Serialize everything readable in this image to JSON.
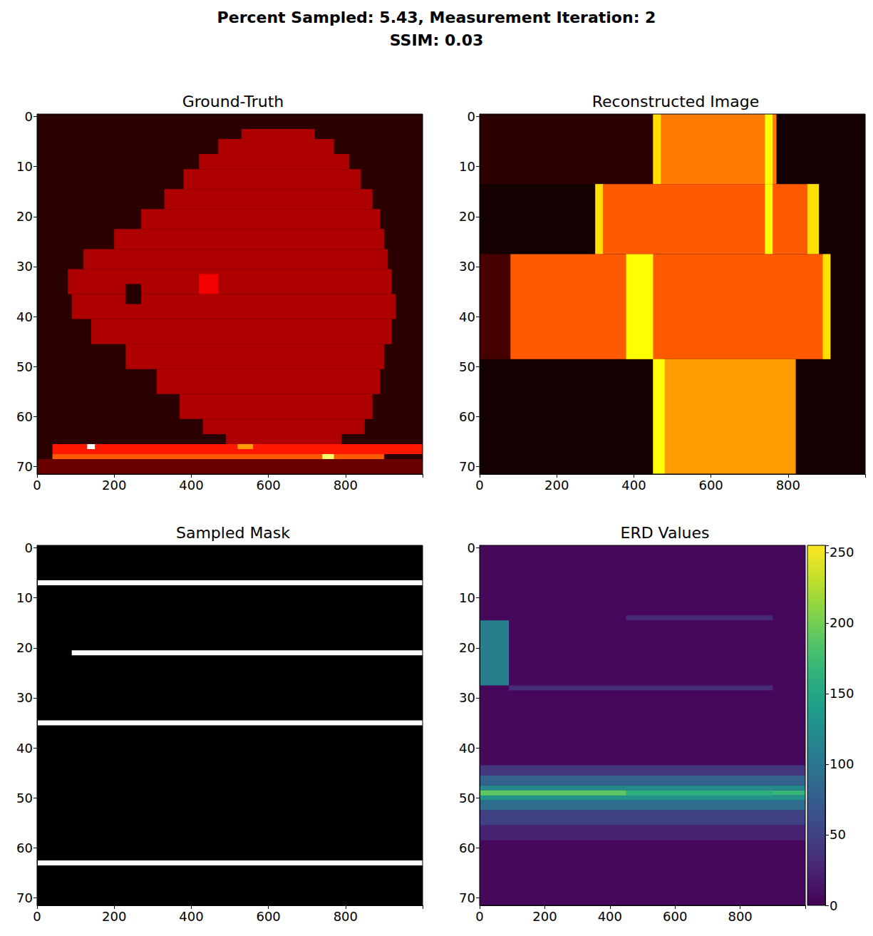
{
  "title": "Percent Sampled: 5.43, Measurement Iteration: 2",
  "subtitle": "SSIM: 0.03",
  "chart_data": [
    {
      "type": "heatmap",
      "title": "Ground-Truth",
      "xlim": [
        0,
        1000
      ],
      "xticks": [
        0,
        200,
        400,
        600,
        800
      ],
      "ylim": [
        71.5,
        -0.5
      ],
      "yticks": [
        0,
        10,
        20,
        30,
        40,
        50,
        60,
        70
      ],
      "color_range": [
        0,
        1
      ],
      "cells": [
        [
          0,
          1000,
          -0.5,
          71.5,
          0.06
        ],
        [
          530,
          720,
          2.5,
          4.5,
          0.25
        ],
        [
          470,
          770,
          4.5,
          7.5,
          0.25
        ],
        [
          420,
          810,
          7.5,
          10.5,
          0.25
        ],
        [
          380,
          840,
          10.5,
          14.5,
          0.25
        ],
        [
          330,
          870,
          14.5,
          18.5,
          0.25
        ],
        [
          270,
          890,
          18.5,
          22.5,
          0.25
        ],
        [
          200,
          900,
          22.5,
          26.5,
          0.25
        ],
        [
          120,
          910,
          26.5,
          30.5,
          0.25
        ],
        [
          80,
          920,
          30.5,
          35.5,
          0.25
        ],
        [
          90,
          930,
          35.5,
          40.5,
          0.25
        ],
        [
          140,
          920,
          40.5,
          45.5,
          0.25
        ],
        [
          230,
          900,
          45.5,
          50.5,
          0.25
        ],
        [
          310,
          890,
          50.5,
          55.5,
          0.25
        ],
        [
          370,
          870,
          55.5,
          60.5,
          0.25
        ],
        [
          430,
          850,
          60.5,
          63.5,
          0.25
        ],
        [
          490,
          790,
          63.5,
          65.5,
          0.25
        ],
        [
          420,
          470,
          31.5,
          35.5,
          0.35
        ],
        [
          230,
          270,
          33.5,
          37.5,
          0.05
        ],
        [
          40,
          1000,
          65.5,
          67.5,
          0.4
        ],
        [
          40,
          900,
          67.5,
          68.5,
          0.5
        ],
        [
          0,
          1000,
          68.5,
          71.5,
          0.15
        ],
        [
          130,
          150,
          65.5,
          66.5,
          1.0
        ],
        [
          520,
          560,
          65.5,
          66.5,
          0.6
        ],
        [
          740,
          770,
          67.5,
          68.5,
          0.85
        ]
      ]
    },
    {
      "type": "heatmap",
      "title": "Reconstructed Image",
      "xlim": [
        0,
        1000
      ],
      "xticks": [
        0,
        200,
        400,
        600,
        800
      ],
      "ylim": [
        71.5,
        -0.5
      ],
      "yticks": [
        0,
        10,
        20,
        30,
        40,
        50,
        60,
        70
      ],
      "color_range": [
        0,
        1
      ],
      "cells": [
        [
          0,
          1000,
          -0.5,
          71.5,
          0.03
        ],
        [
          0,
          450,
          -0.5,
          13.5,
          0.06
        ],
        [
          450,
          770,
          -0.5,
          13.5,
          0.55
        ],
        [
          450,
          470,
          -0.5,
          13.5,
          0.7
        ],
        [
          740,
          760,
          -0.5,
          13.5,
          0.75
        ],
        [
          300,
          880,
          13.5,
          27.5,
          0.5
        ],
        [
          300,
          320,
          13.5,
          27.5,
          0.7
        ],
        [
          850,
          880,
          13.5,
          27.5,
          0.7
        ],
        [
          740,
          760,
          13.5,
          27.5,
          0.75
        ],
        [
          0,
          80,
          27.5,
          48.5,
          0.1
        ],
        [
          80,
          910,
          27.5,
          48.5,
          0.5
        ],
        [
          380,
          450,
          27.5,
          48.5,
          0.75
        ],
        [
          890,
          910,
          27.5,
          48.5,
          0.7
        ],
        [
          450,
          820,
          48.5,
          71.5,
          0.6
        ],
        [
          450,
          480,
          48.5,
          71.5,
          0.75
        ]
      ]
    },
    {
      "type": "heatmap",
      "title": "Sampled Mask",
      "xlim": [
        0,
        1000
      ],
      "xticks": [
        0,
        200,
        400,
        600,
        800
      ],
      "ylim": [
        71.5,
        -0.5
      ],
      "yticks": [
        0,
        10,
        20,
        30,
        40,
        50,
        60,
        70
      ],
      "color_range": [
        0,
        1
      ],
      "cells": [
        [
          0,
          1000,
          -0.5,
          71.5,
          0
        ],
        [
          0,
          1000,
          6.5,
          7.5,
          1
        ],
        [
          90,
          1000,
          20.5,
          21.5,
          1
        ],
        [
          0,
          1000,
          34.5,
          35.5,
          1
        ],
        [
          0,
          1000,
          62.5,
          63.5,
          1
        ]
      ]
    },
    {
      "type": "heatmap",
      "title": "ERD Values",
      "xlim": [
        0,
        1000
      ],
      "xticks": [
        0,
        200,
        400,
        600,
        800
      ],
      "ylim": [
        71.5,
        -0.5
      ],
      "yticks": [
        0,
        10,
        20,
        30,
        40,
        50,
        60,
        70
      ],
      "color_range": [
        0,
        255
      ],
      "colorbar_ticks": [
        0,
        50,
        100,
        150,
        200,
        250
      ],
      "cells": [
        [
          0,
          1000,
          -0.5,
          71.5,
          5
        ],
        [
          0,
          90,
          14.5,
          27.5,
          110
        ],
        [
          450,
          900,
          13.5,
          14.5,
          30
        ],
        [
          90,
          900,
          27.5,
          28.5,
          30
        ],
        [
          0,
          1000,
          43.5,
          45.5,
          40
        ],
        [
          0,
          1000,
          45.5,
          47.5,
          80
        ],
        [
          0,
          1000,
          47.5,
          48.5,
          120
        ],
        [
          0,
          1000,
          48.5,
          49.5,
          170
        ],
        [
          0,
          1000,
          49.5,
          50.5,
          130
        ],
        [
          0,
          1000,
          50.5,
          52.5,
          90
        ],
        [
          0,
          1000,
          52.5,
          55.5,
          50
        ],
        [
          0,
          1000,
          55.5,
          58.5,
          25
        ],
        [
          0,
          450,
          48.5,
          49.5,
          190
        ],
        [
          450,
          900,
          48.5,
          49.5,
          160
        ]
      ]
    }
  ]
}
